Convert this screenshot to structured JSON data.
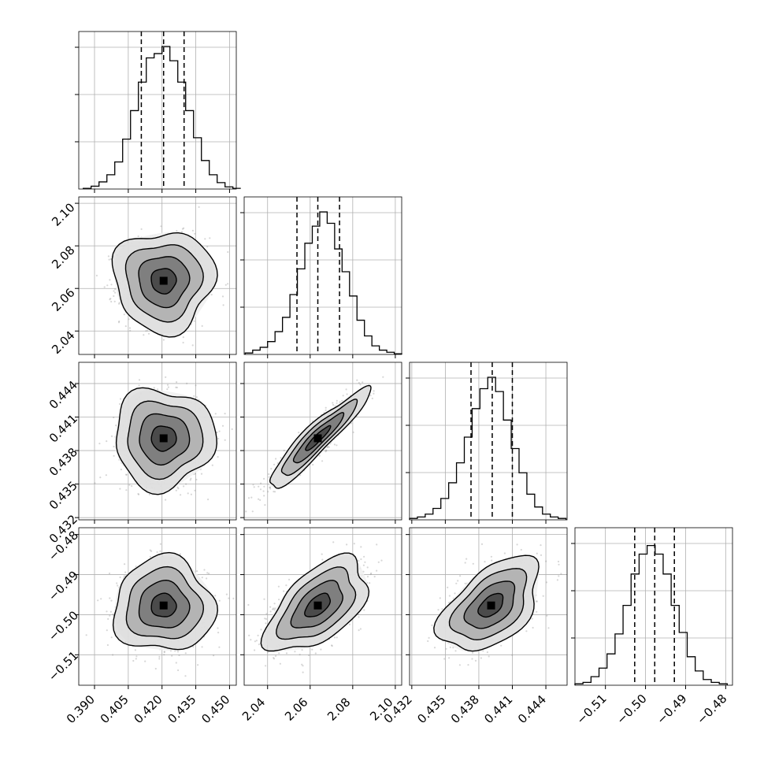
{
  "chart_data": {
    "type": "corner",
    "style": {
      "color": "#000000",
      "grid": true,
      "scatter_color": "#8c8c8c"
    },
    "parameters": [
      {
        "range": [
          0.383,
          0.453
        ],
        "ticks": [
          0.39,
          0.405,
          0.42,
          0.435,
          0.45
        ],
        "tick_labels": [
          "0.390",
          "0.405",
          "0.420",
          "0.435",
          "0.450"
        ],
        "quantiles": [
          0.4108,
          0.4207,
          0.4298
        ],
        "mean": 0.4207,
        "sd": 0.0095
      },
      {
        "range": [
          2.029,
          2.103
        ],
        "ticks": [
          2.04,
          2.06,
          2.08,
          2.1
        ],
        "tick_labels": [
          "2.04",
          "2.06",
          "2.08",
          "2.10"
        ],
        "quantiles": [
          2.0538,
          2.0636,
          2.0738
        ],
        "mean": 2.0636,
        "sd": 0.0101
      },
      {
        "range": [
          0.4318,
          0.4459
        ],
        "ticks": [
          0.432,
          0.435,
          0.438,
          0.441,
          0.444
        ],
        "tick_labels": [
          "0.432",
          "0.435",
          "0.438",
          "0.441",
          "0.444"
        ],
        "quantiles": [
          0.4373,
          0.4392,
          0.441
        ],
        "mean": 0.4391,
        "sd": 0.0019
      },
      {
        "range": [
          -0.5176,
          -0.4783
        ],
        "ticks": [
          -0.51,
          -0.5,
          -0.49,
          -0.48
        ],
        "tick_labels": [
          "−0.51",
          "−0.50",
          "−0.49",
          "−0.48"
        ],
        "quantiles": [
          -0.5027,
          -0.4977,
          -0.4928
        ],
        "mean": -0.4977,
        "sd": 0.005
      }
    ],
    "diagonal_histograms": [
      {
        "bins": [
          0.385,
          0.3885,
          0.392,
          0.3955,
          0.399,
          0.4025,
          0.406,
          0.4095,
          0.413,
          0.4165,
          0.42,
          0.4235,
          0.427,
          0.4305,
          0.434,
          0.4375,
          0.441,
          0.4445,
          0.448,
          0.4515
        ],
        "counts": [
          0.005,
          0.02,
          0.05,
          0.1,
          0.19,
          0.35,
          0.55,
          0.75,
          0.92,
          0.95,
          1.0,
          0.9,
          0.75,
          0.55,
          0.36,
          0.2,
          0.1,
          0.045,
          0.015,
          0.005
        ]
      },
      {
        "bins": [
          2.0295,
          2.033,
          2.0365,
          2.04,
          2.0435,
          2.047,
          2.0505,
          2.054,
          2.0575,
          2.061,
          2.0645,
          2.068,
          2.0715,
          2.075,
          2.0785,
          2.082,
          2.0855,
          2.089,
          2.0925,
          2.096,
          2.0995,
          2.103
        ],
        "counts": [
          0.01,
          0.03,
          0.05,
          0.09,
          0.16,
          0.26,
          0.42,
          0.6,
          0.78,
          0.9,
          1.0,
          0.92,
          0.74,
          0.58,
          0.41,
          0.24,
          0.13,
          0.06,
          0.03,
          0.015,
          0.005
        ]
      },
      {
        "bins": [
          0.4318,
          0.4325,
          0.4332,
          0.4339,
          0.4346,
          0.4353,
          0.436,
          0.4367,
          0.4374,
          0.4381,
          0.4388,
          0.4395,
          0.4402,
          0.4409,
          0.4416,
          0.4423,
          0.443,
          0.4437,
          0.4444,
          0.4451,
          0.4458
        ],
        "counts": [
          0.01,
          0.02,
          0.04,
          0.08,
          0.15,
          0.26,
          0.4,
          0.58,
          0.78,
          0.92,
          1.0,
          0.9,
          0.7,
          0.5,
          0.33,
          0.18,
          0.09,
          0.04,
          0.02,
          0.01
        ]
      },
      {
        "bins": [
          -0.5176,
          -0.5156,
          -0.5136,
          -0.5116,
          -0.5096,
          -0.5076,
          -0.5056,
          -0.5036,
          -0.5016,
          -0.4996,
          -0.4976,
          -0.4956,
          -0.4936,
          -0.4916,
          -0.4896,
          -0.4876,
          -0.4856,
          -0.4836,
          -0.4816,
          -0.4796
        ],
        "counts": [
          0.01,
          0.02,
          0.06,
          0.12,
          0.22,
          0.36,
          0.56,
          0.78,
          0.92,
          0.98,
          0.92,
          0.78,
          0.56,
          0.37,
          0.2,
          0.1,
          0.04,
          0.02,
          0.01
        ]
      }
    ],
    "pairs": [
      {
        "x": 0,
        "y": 1,
        "corr": 0.0
      },
      {
        "x": 0,
        "y": 2,
        "corr": 0.0
      },
      {
        "x": 1,
        "y": 2,
        "corr": 0.93
      },
      {
        "x": 0,
        "y": 3,
        "corr": 0.0
      },
      {
        "x": 1,
        "y": 3,
        "corr": 0.55
      },
      {
        "x": 2,
        "y": 3,
        "corr": 0.5
      }
    ],
    "contour_levels_sigma": [
      0.5,
      1.0,
      1.5,
      2.0
    ]
  }
}
